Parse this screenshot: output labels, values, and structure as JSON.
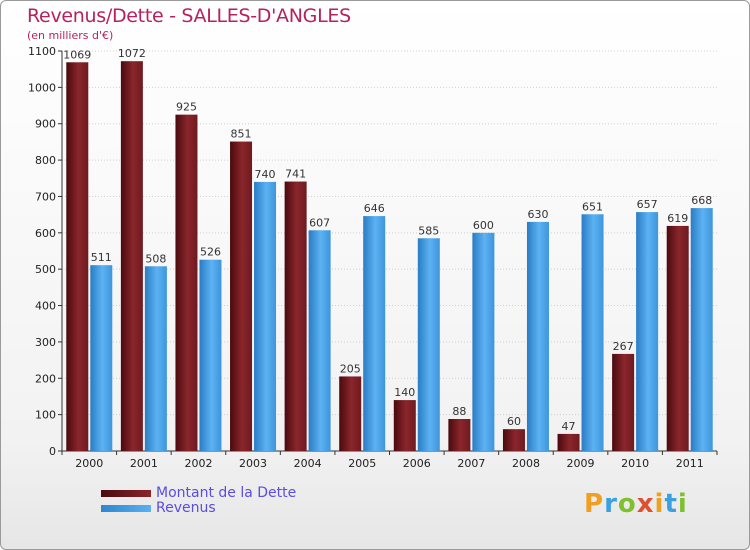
{
  "page": {
    "title": "Revenus/Dette - SALLES-D'ANGLES",
    "subtitle": "(en milliers d'€)",
    "logo": "Proxiti"
  },
  "colors": {
    "dette": "#7a1c22",
    "revenus": "#4aa0e6",
    "title": "#b5225f",
    "legend_text": "#5a4de0"
  },
  "chart_data": {
    "type": "bar",
    "categories": [
      "2000",
      "2001",
      "2002",
      "2003",
      "2004",
      "2005",
      "2006",
      "2007",
      "2008",
      "2009",
      "2010",
      "2011"
    ],
    "series": [
      {
        "name": "Montant de la Dette",
        "values": [
          1069,
          1072,
          925,
          851,
          741,
          205,
          140,
          88,
          60,
          47,
          267,
          619
        ]
      },
      {
        "name": "Revenus",
        "values": [
          511,
          508,
          526,
          740,
          607,
          646,
          585,
          600,
          630,
          651,
          657,
          668
        ]
      }
    ],
    "ylim": [
      0,
      1100
    ],
    "yticks": [
      0,
      100,
      200,
      300,
      400,
      500,
      600,
      700,
      800,
      900,
      1000,
      1100
    ],
    "grid": true,
    "legend": "bottom-left"
  }
}
